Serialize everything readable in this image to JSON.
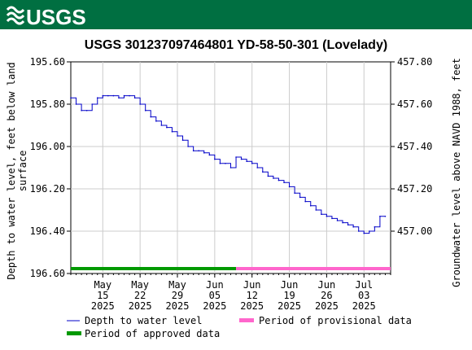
{
  "header": {
    "logo_text": "USGS",
    "bar_color": "#006f41"
  },
  "chart_data": {
    "type": "line",
    "title": "USGS 301237097464801 YD-58-50-301 (Lovelady)",
    "ylabel_left": [
      "Depth to water level, feet below land",
      "surface"
    ],
    "ylabel_right": "Groundwater level above NAVD 1988, feet",
    "ylim_left": [
      196.6,
      195.6
    ],
    "ylim_right_ticks": [
      "457.80",
      "457.60",
      "457.40",
      "457.20",
      "457.00"
    ],
    "ylim_right_values": [
      457.8,
      457.6,
      457.4,
      457.2,
      457.0
    ],
    "left_tick_labels": [
      "195.60",
      "195.80",
      "196.00",
      "196.20",
      "196.40",
      "196.60"
    ],
    "left_tick_values": [
      195.6,
      195.8,
      196.0,
      196.2,
      196.4,
      196.6
    ],
    "x_ticks": [
      {
        "label": [
          "May",
          "15",
          "2025"
        ],
        "date": "2025-05-15"
      },
      {
        "label": [
          "May",
          "22",
          "2025"
        ],
        "date": "2025-05-22"
      },
      {
        "label": [
          "May",
          "29",
          "2025"
        ],
        "date": "2025-05-29"
      },
      {
        "label": [
          "Jun",
          "05",
          "2025"
        ],
        "date": "2025-06-05"
      },
      {
        "label": [
          "Jun",
          "12",
          "2025"
        ],
        "date": "2025-06-12"
      },
      {
        "label": [
          "Jun",
          "19",
          "2025"
        ],
        "date": "2025-06-19"
      },
      {
        "label": [
          "Jun",
          "26",
          "2025"
        ],
        "date": "2025-06-26"
      },
      {
        "label": [
          "Jul",
          "03",
          "2025"
        ],
        "date": "2025-07-03"
      }
    ],
    "xlim": [
      "2025-05-09",
      "2025-07-08"
    ],
    "series": [
      {
        "name": "Depth to water level",
        "color": "#0000c8",
        "x": [
          "2025-05-09",
          "2025-05-10",
          "2025-05-11",
          "2025-05-12",
          "2025-05-13",
          "2025-05-14",
          "2025-05-15",
          "2025-05-16",
          "2025-05-17",
          "2025-05-18",
          "2025-05-19",
          "2025-05-20",
          "2025-05-21",
          "2025-05-22",
          "2025-05-23",
          "2025-05-24",
          "2025-05-25",
          "2025-05-26",
          "2025-05-27",
          "2025-05-28",
          "2025-05-29",
          "2025-05-30",
          "2025-05-31",
          "2025-06-01",
          "2025-06-02",
          "2025-06-03",
          "2025-06-04",
          "2025-06-05",
          "2025-06-06",
          "2025-06-07",
          "2025-06-08",
          "2025-06-09",
          "2025-06-10",
          "2025-06-11",
          "2025-06-12",
          "2025-06-13",
          "2025-06-14",
          "2025-06-15",
          "2025-06-16",
          "2025-06-17",
          "2025-06-18",
          "2025-06-19",
          "2025-06-20",
          "2025-06-21",
          "2025-06-22",
          "2025-06-23",
          "2025-06-24",
          "2025-06-25",
          "2025-06-26",
          "2025-06-27",
          "2025-06-28",
          "2025-06-29",
          "2025-06-30",
          "2025-07-01",
          "2025-07-02",
          "2025-07-03",
          "2025-07-04",
          "2025-07-05",
          "2025-07-06",
          "2025-07-07"
        ],
        "y": [
          195.77,
          195.8,
          195.83,
          195.83,
          195.8,
          195.77,
          195.76,
          195.76,
          195.76,
          195.77,
          195.76,
          195.76,
          195.77,
          195.8,
          195.83,
          195.86,
          195.88,
          195.9,
          195.91,
          195.93,
          195.95,
          195.97,
          196.0,
          196.02,
          196.02,
          196.03,
          196.04,
          196.06,
          196.08,
          196.08,
          196.1,
          196.05,
          196.06,
          196.07,
          196.08,
          196.1,
          196.12,
          196.14,
          196.15,
          196.16,
          196.17,
          196.19,
          196.22,
          196.24,
          196.26,
          196.28,
          196.3,
          196.32,
          196.33,
          196.34,
          196.35,
          196.36,
          196.37,
          196.38,
          196.4,
          196.41,
          196.4,
          196.38,
          196.33,
          196.33
        ]
      }
    ],
    "periods": [
      {
        "name": "Period of approved data",
        "color": "#009900",
        "start": "2025-05-09",
        "end": "2025-06-09"
      },
      {
        "name": "Period of provisional data",
        "color": "#ff66cc",
        "start": "2025-06-09",
        "end": "2025-07-08"
      }
    ],
    "legend": {
      "placement": "bottom",
      "items": [
        {
          "label": "Depth to water level",
          "kind": "line",
          "color": "#0000c8"
        },
        {
          "label": "Period of provisional data",
          "kind": "bar",
          "color": "#ff66cc"
        },
        {
          "label": "Period of approved data",
          "kind": "bar",
          "color": "#009900"
        }
      ]
    },
    "grid": true
  }
}
